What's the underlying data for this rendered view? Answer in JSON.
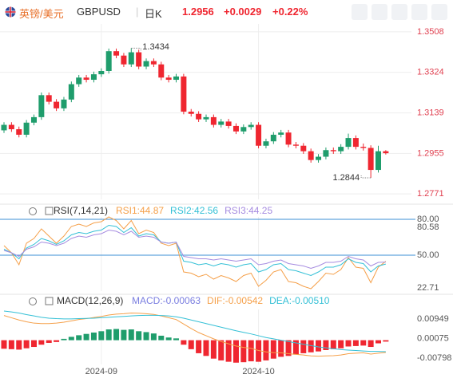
{
  "header": {
    "title": "英镑/美元",
    "symbol": "GBPUSD",
    "period": "日K",
    "price": "1.2956",
    "change": "+0.0029",
    "change_pct": "+0.22%"
  },
  "chart_data": [
    {
      "type": "candlestick",
      "up_color": "#1f9d6c",
      "down_color": "#ef2630",
      "grid": true,
      "ylim": [
        1.2746,
        1.3544
      ],
      "yticks": [
        1.3508,
        1.3324,
        1.3139,
        1.2955,
        1.2771
      ],
      "categories": [
        null,
        null,
        null,
        null,
        null,
        null,
        null,
        null,
        null,
        null,
        null,
        null,
        null,
        "2024-09",
        null,
        null,
        null,
        null,
        null,
        null,
        null,
        null,
        null,
        null,
        null,
        null,
        null,
        null,
        null,
        null,
        null,
        null,
        null,
        null,
        "2024-10",
        null,
        null,
        null,
        null,
        null,
        null,
        null,
        null,
        null,
        null,
        null,
        null,
        null,
        null,
        null,
        null,
        null
      ],
      "open": [
        1.306,
        1.3085,
        1.3065,
        1.304,
        1.3095,
        1.312,
        1.322,
        1.319,
        1.316,
        1.32,
        1.327,
        1.33,
        1.329,
        1.3315,
        1.333,
        1.342,
        1.34,
        1.336,
        1.3415,
        1.335,
        1.3375,
        1.336,
        1.33,
        1.329,
        1.3305,
        1.3145,
        1.3135,
        1.311,
        1.312,
        1.3085,
        1.31,
        1.308,
        1.3055,
        1.3075,
        1.3085,
        1.299,
        1.301,
        1.304,
        1.305,
        1.2995,
        1.299,
        1.2965,
        1.2925,
        1.294,
        1.297,
        1.2965,
        1.2985,
        1.3025,
        1.2985,
        1.298,
        1.288,
        1.2965
      ],
      "high": [
        1.3097,
        1.3097,
        1.3077,
        1.3107,
        1.3132,
        1.3232,
        1.3232,
        1.3202,
        1.3212,
        1.3282,
        1.3312,
        1.3312,
        1.3327,
        1.3342,
        1.3432,
        1.3432,
        1.3412,
        1.3434,
        1.3427,
        1.3387,
        1.3387,
        1.3372,
        1.3312,
        1.3317,
        1.3317,
        1.3157,
        1.3147,
        1.3132,
        1.3132,
        1.3112,
        1.3112,
        1.3092,
        1.3087,
        1.3097,
        1.3097,
        1.3022,
        1.3052,
        1.3062,
        1.3062,
        1.3007,
        1.3002,
        1.2977,
        1.2952,
        1.2982,
        1.2982,
        1.2997,
        1.3045,
        1.3037,
        1.3,
        1.2992,
        1.299,
        1.297
      ],
      "low": [
        1.3048,
        1.3053,
        1.3028,
        1.3028,
        1.3083,
        1.3108,
        1.3178,
        1.3148,
        1.3148,
        1.3188,
        1.3258,
        1.3278,
        1.3278,
        1.3303,
        1.3318,
        1.3388,
        1.3348,
        1.3348,
        1.3338,
        1.3338,
        1.3348,
        1.3288,
        1.3278,
        1.3278,
        1.3133,
        1.3123,
        1.3098,
        1.3098,
        1.3073,
        1.3073,
        1.3068,
        1.3043,
        1.3043,
        1.3063,
        1.2978,
        1.2978,
        1.2998,
        1.3028,
        1.2983,
        1.2978,
        1.2953,
        1.2913,
        1.2913,
        1.2928,
        1.2953,
        1.2953,
        1.2973,
        1.2973,
        1.2968,
        1.2844,
        1.2868,
        1.295
      ],
      "close": [
        1.3085,
        1.3065,
        1.304,
        1.3095,
        1.312,
        1.322,
        1.319,
        1.316,
        1.32,
        1.327,
        1.33,
        1.329,
        1.3315,
        1.333,
        1.342,
        1.34,
        1.336,
        1.3415,
        1.335,
        1.3375,
        1.336,
        1.33,
        1.329,
        1.3305,
        1.3145,
        1.3135,
        1.311,
        1.312,
        1.3085,
        1.31,
        1.308,
        1.3055,
        1.3075,
        1.3085,
        1.299,
        1.301,
        1.304,
        1.305,
        1.2995,
        1.299,
        1.2965,
        1.2925,
        1.294,
        1.297,
        1.2965,
        1.2985,
        1.3025,
        1.2985,
        1.298,
        1.288,
        1.2965,
        1.2956
      ],
      "annotations": [
        {
          "value": 1.3434
        },
        {
          "value": 1.2844
        }
      ]
    },
    {
      "type": "line",
      "title": "RSI(7,14,21)",
      "ylim": [
        20,
        82
      ],
      "levels": [
        80,
        50
      ],
      "level_color": "#3b8fd6",
      "yticks": [
        {
          "value": 80,
          "label": "80.00"
        },
        80.58,
        {
          "value": 50,
          "label": "50.00"
        },
        22.71
      ],
      "series": [
        {
          "name": "RSI1:44.87",
          "color": "#f5a04a",
          "values": [
            58,
            52,
            42,
            60,
            64,
            72,
            66,
            60,
            66,
            74,
            76,
            74,
            77,
            78,
            82,
            79,
            72,
            79,
            68,
            71,
            69,
            60,
            58,
            60,
            36,
            35,
            32,
            34,
            30,
            33,
            31,
            28,
            33,
            35,
            24,
            29,
            36,
            38,
            28,
            27,
            24,
            22,
            28,
            35,
            34,
            38,
            48,
            40,
            39,
            27,
            40,
            44.87
          ]
        },
        {
          "name": "RSI2:42.56",
          "color": "#34c0d6",
          "values": [
            55,
            52,
            47,
            56,
            59,
            64,
            62,
            59,
            62,
            67,
            69,
            68,
            70,
            71,
            75,
            74,
            69,
            73,
            66,
            68,
            67,
            61,
            60,
            61,
            45,
            44,
            42,
            43,
            41,
            43,
            42,
            40,
            42,
            43,
            36,
            38,
            42,
            43,
            38,
            37,
            35,
            33,
            36,
            40,
            40,
            42,
            47,
            44,
            43,
            36,
            41,
            42.56
          ]
        },
        {
          "name": "RSI3:44.25",
          "color": "#a68ce0",
          "values": [
            54,
            52,
            49,
            55,
            57,
            61,
            60,
            58,
            60,
            64,
            66,
            65,
            67,
            68,
            71,
            70,
            67,
            70,
            65,
            66,
            65,
            61,
            60,
            61,
            49,
            48,
            47,
            47,
            46,
            47,
            46,
            45,
            46,
            47,
            42,
            43,
            45,
            46,
            43,
            42,
            41,
            39,
            41,
            44,
            44,
            45,
            49,
            47,
            46,
            41,
            44,
            44.25
          ]
        }
      ]
    },
    {
      "type": "macd",
      "title": "MACD(12,26,9)",
      "ylim": [
        -0.0108,
        0.0137
      ],
      "yticks": [
        0.00949,
        0.00075,
        -0.00798
      ],
      "histogram": {
        "name": "MACD:-0.00063",
        "color": "#7a7ee0",
        "up_color": "#1f9d6c",
        "down_color": "#ef2630",
        "values": [
          -0.0038,
          -0.004,
          -0.0042,
          -0.0036,
          -0.003,
          -0.002,
          -0.0012,
          -0.0008,
          0.0006,
          0.0015,
          0.0022,
          0.0028,
          0.0034,
          0.004,
          0.0048,
          0.005,
          0.0046,
          0.0048,
          0.004,
          0.0036,
          0.003,
          0.002,
          0.0012,
          0.0008,
          -0.002,
          -0.004,
          -0.0058,
          -0.007,
          -0.0082,
          -0.009,
          -0.0096,
          -0.01,
          -0.0098,
          -0.0094,
          -0.0096,
          -0.009,
          -0.0082,
          -0.0074,
          -0.007,
          -0.0064,
          -0.0058,
          -0.0054,
          -0.005,
          -0.0044,
          -0.004,
          -0.0036,
          -0.0028,
          -0.0026,
          -0.0024,
          -0.003,
          -0.0014,
          -0.00063
        ]
      },
      "series": [
        {
          "name": "DIF:-0.00542",
          "color": "#f5a04a",
          "values": [
            0.011,
            0.01,
            0.009,
            0.0082,
            0.0076,
            0.0074,
            0.0074,
            0.0076,
            0.008,
            0.0086,
            0.0092,
            0.0096,
            0.0101,
            0.0106,
            0.0112,
            0.0116,
            0.0118,
            0.0121,
            0.012,
            0.0118,
            0.0115,
            0.0108,
            0.01,
            0.0092,
            0.0072,
            0.0052,
            0.0034,
            0.002,
            0.0006,
            -0.0006,
            -0.0016,
            -0.0026,
            -0.0032,
            -0.0036,
            -0.0046,
            -0.0052,
            -0.0055,
            -0.0056,
            -0.006,
            -0.0063,
            -0.0066,
            -0.007,
            -0.0071,
            -0.007,
            -0.0069,
            -0.0066,
            -0.006,
            -0.0058,
            -0.0056,
            -0.0062,
            -0.0058,
            -0.00542
          ]
        },
        {
          "name": "DEA:-0.00510",
          "color": "#34c0d6",
          "values": [
            0.013,
            0.0126,
            0.0121,
            0.0114,
            0.0108,
            0.0102,
            0.0098,
            0.0096,
            0.0095,
            0.0095,
            0.0096,
            0.0097,
            0.0098,
            0.01,
            0.0102,
            0.0104,
            0.0106,
            0.0108,
            0.011,
            0.0111,
            0.0111,
            0.011,
            0.0108,
            0.0104,
            0.0098,
            0.009,
            0.0082,
            0.0074,
            0.0066,
            0.0058,
            0.005,
            0.0042,
            0.0035,
            0.0028,
            0.002,
            0.0012,
            0.0006,
            0.0,
            -0.0006,
            -0.0012,
            -0.0018,
            -0.0024,
            -0.003,
            -0.0034,
            -0.0038,
            -0.0042,
            -0.0044,
            -0.0046,
            -0.0048,
            -0.005,
            -0.005,
            -0.0051
          ]
        }
      ]
    }
  ]
}
